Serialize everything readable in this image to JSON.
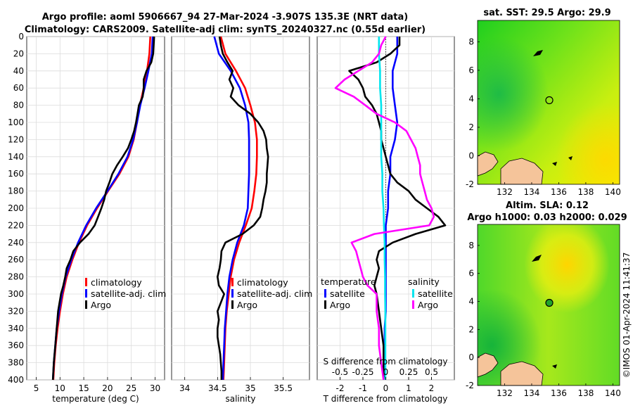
{
  "header": {
    "title_line1": "Argo profile: aoml 5906667_94 27-Mar-2024 -3.907S 135.3E (NRT data)",
    "title_line2": "Climatology: CARS2009. Satellite-adj clim: synTS_20240327.nc (0.55d earlier)",
    "watermark": "©IMOS 01-Apr-2024 11:41:37"
  },
  "chart_data": [
    {
      "id": "temperature",
      "type": "line",
      "xlabel": "temperature (deg C)",
      "ylabel": "",
      "xlim": [
        3,
        32
      ],
      "ylim": [
        400,
        0
      ],
      "xticks": [
        "5",
        "10",
        "15",
        "20",
        "25",
        "30"
      ],
      "xtick_values": [
        5,
        10,
        15,
        20,
        25,
        30
      ],
      "yticks": [
        "0",
        "20",
        "40",
        "60",
        "80",
        "100",
        "120",
        "140",
        "160",
        "180",
        "200",
        "220",
        "240",
        "260",
        "280",
        "300",
        "320",
        "340",
        "360",
        "380",
        "400"
      ],
      "ytick_values": [
        0,
        20,
        40,
        60,
        80,
        100,
        120,
        140,
        160,
        180,
        200,
        220,
        240,
        260,
        280,
        300,
        320,
        340,
        360,
        380,
        400
      ],
      "legend": [
        "climatology",
        "satellite-adj. clim",
        "Argo"
      ],
      "series": [
        {
          "name": "climatology",
          "color": "#ff0000",
          "depth": [
            0,
            20,
            40,
            60,
            80,
            100,
            120,
            140,
            160,
            180,
            200,
            220,
            240,
            260,
            280,
            300,
            320,
            340,
            360,
            380,
            400
          ],
          "values": [
            29.0,
            28.8,
            28.3,
            27.6,
            26.8,
            26.2,
            25.5,
            24.4,
            22.5,
            20.1,
            17.8,
            15.7,
            14.0,
            12.6,
            11.4,
            10.6,
            10.0,
            9.5,
            9.1,
            8.8,
            8.6
          ]
        },
        {
          "name": "satellite-adj. clim",
          "color": "#0000ff",
          "depth": [
            0,
            20,
            40,
            60,
            80,
            100,
            120,
            140,
            160,
            180,
            200,
            220,
            240,
            260,
            280,
            300,
            320,
            340,
            360,
            380,
            400
          ],
          "values": [
            29.5,
            29.3,
            28.6,
            27.8,
            26.9,
            26.2,
            25.4,
            24.2,
            22.3,
            20.0,
            17.6,
            15.5,
            13.8,
            12.4,
            11.2,
            10.4,
            9.8,
            9.3,
            9.0,
            8.7,
            8.5
          ]
        },
        {
          "name": "Argo",
          "color": "#000000",
          "depth": [
            0,
            10,
            20,
            30,
            40,
            50,
            60,
            70,
            80,
            90,
            100,
            110,
            120,
            130,
            140,
            150,
            160,
            170,
            180,
            190,
            200,
            210,
            220,
            230,
            240,
            250,
            260,
            270,
            280,
            290,
            300,
            320,
            340,
            360,
            380,
            400
          ],
          "values": [
            29.8,
            29.7,
            29.6,
            29.2,
            28.2,
            27.6,
            27.6,
            27.4,
            26.6,
            26.3,
            26.0,
            25.6,
            25.0,
            24.3,
            23.2,
            22.0,
            21.0,
            20.4,
            19.7,
            19.3,
            18.7,
            18.0,
            17.3,
            16.0,
            14.2,
            12.8,
            12.2,
            11.4,
            11.1,
            10.7,
            10.2,
            9.6,
            9.3,
            9.0,
            8.7,
            8.5
          ]
        }
      ]
    },
    {
      "id": "salinity",
      "type": "line",
      "xlabel": "salinity",
      "ylabel": "",
      "xlim": [
        33.8,
        35.9
      ],
      "ylim": [
        400,
        0
      ],
      "xticks": [
        "34",
        "34.5",
        "35",
        "35.5"
      ],
      "xtick_values": [
        34,
        34.5,
        35,
        35.5
      ],
      "legend": [
        "climatology",
        "satellite-adj. clim",
        "Argo"
      ],
      "series": [
        {
          "name": "climatology",
          "color": "#ff0000",
          "depth": [
            0,
            20,
            40,
            60,
            80,
            100,
            120,
            140,
            160,
            180,
            200,
            220,
            240,
            260,
            280,
            300,
            320,
            340,
            360,
            380,
            400
          ],
          "values": [
            34.55,
            34.62,
            34.78,
            34.92,
            35.0,
            35.07,
            35.1,
            35.1,
            35.09,
            35.06,
            35.02,
            34.93,
            34.83,
            34.75,
            34.7,
            34.67,
            34.64,
            34.62,
            34.61,
            34.6,
            34.59
          ]
        },
        {
          "name": "satellite-adj. clim",
          "color": "#0000ff",
          "depth": [
            0,
            20,
            40,
            60,
            80,
            100,
            120,
            140,
            160,
            180,
            200,
            220,
            240,
            260,
            280,
            300,
            320,
            340,
            360,
            380,
            400
          ],
          "values": [
            34.45,
            34.52,
            34.7,
            34.84,
            34.92,
            34.97,
            34.98,
            34.98,
            34.98,
            34.97,
            34.96,
            34.9,
            34.8,
            34.73,
            34.68,
            34.65,
            34.63,
            34.61,
            34.6,
            34.59,
            34.58
          ]
        },
        {
          "name": "Argo",
          "color": "#000000",
          "depth": [
            0,
            10,
            20,
            30,
            40,
            50,
            60,
            70,
            80,
            90,
            100,
            110,
            120,
            130,
            140,
            150,
            160,
            170,
            180,
            190,
            200,
            210,
            220,
            230,
            240,
            250,
            260,
            270,
            280,
            290,
            300,
            310,
            320,
            330,
            340,
            350,
            360,
            370,
            380,
            390,
            400
          ],
          "values": [
            34.53,
            34.55,
            34.58,
            34.65,
            34.73,
            34.68,
            34.74,
            34.7,
            34.82,
            35.0,
            35.12,
            35.2,
            35.24,
            35.25,
            35.27,
            35.26,
            35.25,
            35.25,
            35.23,
            35.2,
            35.18,
            35.15,
            35.05,
            34.88,
            34.62,
            34.56,
            34.55,
            34.53,
            34.5,
            34.52,
            34.6,
            34.55,
            34.5,
            34.52,
            34.5,
            34.5,
            34.52,
            34.54,
            34.55,
            34.56,
            34.56
          ]
        }
      ]
    },
    {
      "id": "differences",
      "type": "line",
      "xlabel": "T difference from climatology",
      "ylabel": "",
      "top_axis_label": "S difference from climatology",
      "xlim": [
        -3,
        3
      ],
      "ylim": [
        400,
        0
      ],
      "xticks": [
        "-2",
        "-1",
        "0",
        "1",
        "2"
      ],
      "xtick_values": [
        -2,
        -1,
        0,
        1,
        2
      ],
      "s_ticks": [
        "-0.5",
        "-0.25",
        "0",
        "0.25",
        "0.5"
      ],
      "s_tick_positions_T_units": [
        -2,
        -1,
        0,
        1,
        2
      ],
      "legend_temperature_title": "temperature",
      "legend_salinity_title": "salinity",
      "legend": [
        "satellite",
        "Argo",
        "satellite",
        "Argo"
      ],
      "series": [
        {
          "name": "T satellite",
          "color": "#0000ff",
          "depth": [
            0,
            20,
            40,
            60,
            80,
            100,
            120,
            140,
            160,
            180,
            200,
            220,
            240,
            260,
            280,
            300,
            320,
            340,
            360,
            380,
            400
          ],
          "values": [
            0.5,
            0.5,
            0.3,
            0.3,
            0.4,
            0.5,
            0.4,
            0.2,
            0.2,
            0.1,
            0.1,
            0.0,
            0.0,
            0.0,
            0.0,
            0.0,
            0.0,
            -0.05,
            -0.05,
            -0.05,
            -0.05
          ]
        },
        {
          "name": "T Argo",
          "color": "#000000",
          "depth": [
            0,
            10,
            20,
            30,
            40,
            50,
            60,
            70,
            80,
            90,
            100,
            110,
            120,
            130,
            140,
            150,
            160,
            170,
            180,
            190,
            200,
            210,
            220,
            230,
            240,
            250,
            260,
            270,
            280,
            290,
            300,
            320,
            340,
            360,
            380,
            400
          ],
          "values": [
            0.6,
            0.6,
            0.2,
            -0.4,
            -1.6,
            -1.2,
            -1.0,
            -0.9,
            -0.6,
            -0.4,
            -0.3,
            -0.2,
            -0.2,
            -0.1,
            0.0,
            0.1,
            0.2,
            0.5,
            1.0,
            1.3,
            1.8,
            2.3,
            2.6,
            1.3,
            0.3,
            -0.3,
            -0.4,
            -0.3,
            -0.4,
            -0.5,
            -0.4,
            -0.3,
            -0.2,
            -0.1,
            -0.1,
            -0.1
          ]
        },
        {
          "name": "S satellite",
          "color": "#00e5ee",
          "depth": [
            0,
            20,
            40,
            60,
            80,
            100,
            120,
            140,
            160,
            180,
            200,
            220,
            240,
            260,
            280,
            300,
            320,
            340,
            360,
            380,
            400
          ],
          "values": [
            -0.3,
            -0.3,
            -0.25,
            -0.25,
            -0.2,
            -0.2,
            -0.2,
            -0.2,
            -0.15,
            -0.15,
            -0.1,
            -0.08,
            -0.05,
            -0.05,
            -0.03,
            -0.03,
            -0.02,
            -0.02,
            -0.02,
            -0.02,
            -0.02
          ]
        },
        {
          "name": "S Argo",
          "color": "#ff00ff",
          "depth": [
            0,
            10,
            20,
            30,
            40,
            50,
            60,
            70,
            80,
            90,
            100,
            110,
            120,
            130,
            140,
            150,
            160,
            170,
            180,
            190,
            200,
            210,
            220,
            230,
            240,
            250,
            260,
            270,
            280,
            290,
            300,
            320,
            340,
            360,
            380,
            400
          ],
          "values": [
            0.0,
            -0.2,
            -0.3,
            -0.6,
            -1.2,
            -1.8,
            -2.2,
            -1.4,
            -0.9,
            -0.4,
            0.4,
            0.9,
            1.1,
            1.3,
            1.4,
            1.5,
            1.5,
            1.6,
            1.7,
            1.8,
            2.0,
            2.1,
            1.9,
            -0.5,
            -1.5,
            -1.3,
            -1.2,
            -1.1,
            -1.0,
            -0.8,
            -0.4,
            -0.4,
            -0.3,
            -0.3,
            -0.2,
            -0.1
          ]
        }
      ]
    },
    {
      "id": "sst_map",
      "type": "heatmap",
      "title": "sat. SST: 29.5  Argo: 29.9",
      "xlim": [
        130,
        140.5
      ],
      "ylim": [
        -2,
        9.5
      ],
      "xticks": [
        "132",
        "134",
        "136",
        "138",
        "140"
      ],
      "xtick_values": [
        132,
        134,
        136,
        138,
        140
      ],
      "yticks": [
        "-2",
        "0",
        "2",
        "4",
        "6",
        "8"
      ],
      "ytick_values": [
        -2,
        0,
        2,
        4,
        6,
        8
      ],
      "marker": {
        "lon": 135.3,
        "lat": 3.9
      }
    },
    {
      "id": "sla_map",
      "type": "heatmap",
      "title_line1": "Altim. SLA: 0.12",
      "title_line2": "Argo h1000: 0.03  h2000: 0.029",
      "xlim": [
        130,
        140.5
      ],
      "ylim": [
        -2,
        9.5
      ],
      "xticks": [
        "132",
        "134",
        "136",
        "138",
        "140"
      ],
      "xtick_values": [
        132,
        134,
        136,
        138,
        140
      ],
      "yticks": [
        "-2",
        "0",
        "2",
        "4",
        "6",
        "8"
      ],
      "ytick_values": [
        -2,
        0,
        2,
        4,
        6,
        8
      ],
      "marker": {
        "lon": 135.3,
        "lat": 3.9
      }
    }
  ]
}
